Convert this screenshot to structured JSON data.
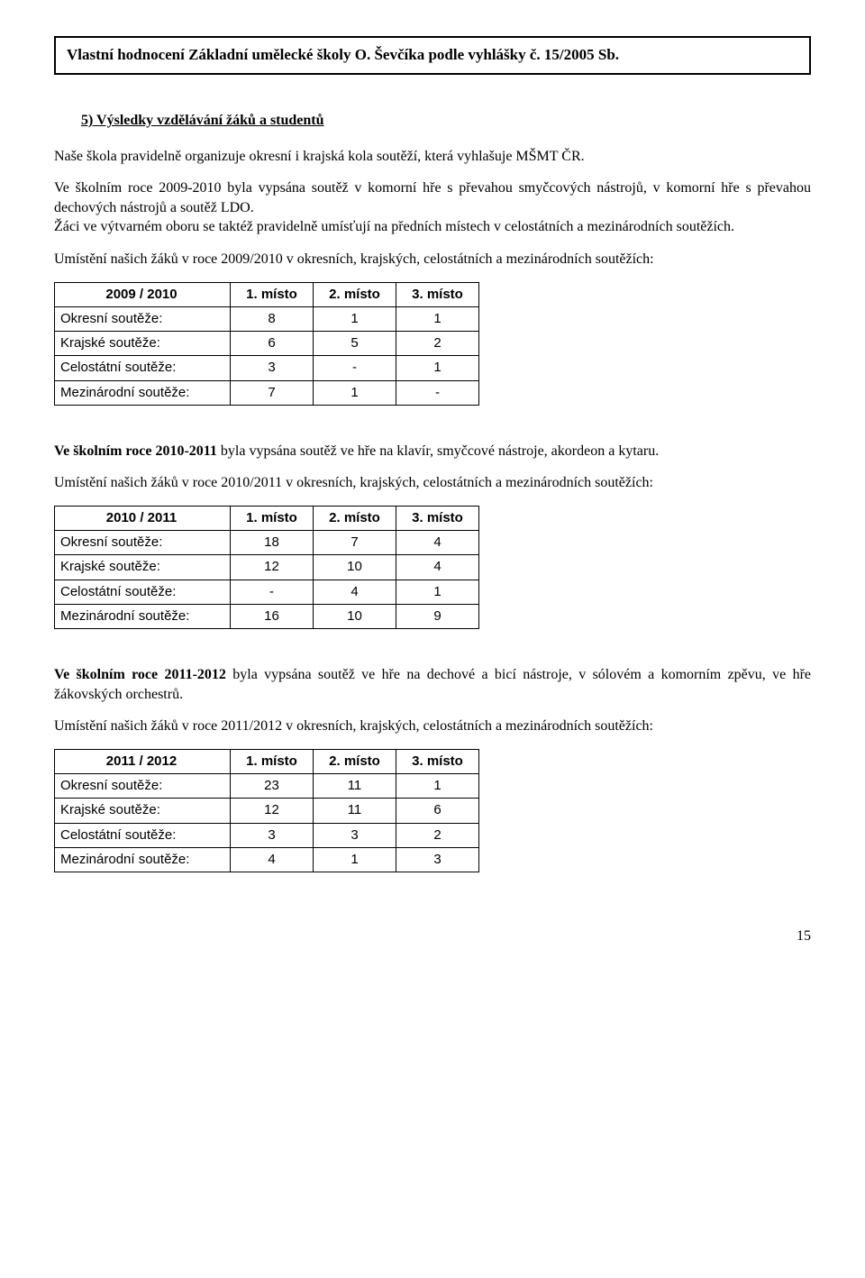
{
  "header_title": "Vlastní hodnocení Základní umělecké školy O. Ševčíka podle vyhlášky č. 15/2005 Sb.",
  "section_heading": "5)  Výsledky vzdělávání žáků a studentů",
  "para_intro1": "Naše škola pravidelně organizuje okresní i krajská kola soutěží, která vyhlašuje MŠMT ČR.",
  "para_intro2": "Ve školním roce 2009-2010 byla vypsána soutěž v komorní hře s převahou smyčcových nástrojů, v komorní hře s převahou dechových nástrojů a soutěž LDO.",
  "para_intro3": "Žáci ve výtvarném oboru se taktéž pravidelně umísťují na předních místech v celostátních a mezinárodních soutěžích.",
  "para_t1": "Umístění našich žáků v roce 2009/2010 v okresních, krajských, celostátních a mezinárodních soutěžích:",
  "para_block2": "Ve školním roce 2010-2011 byla vypsána soutěž ve hře na klavír, smyčcové nástroje, akordeon a kytaru.",
  "para_block2_bold": "Ve školním roce 2010-2011",
  "para_block2_rest": " byla vypsána soutěž ve hře na klavír, smyčcové nástroje, akordeon a kytaru.",
  "para_t2": "Umístění našich žáků v roce 2010/2011 v okresních, krajských, celostátních a mezinárodních soutěžích:",
  "para_block3_bold": "Ve školním roce 2011-2012",
  "para_block3_rest": " byla vypsána soutěž ve hře na dechové a bicí nástroje, v sólovém a komorním zpěvu, ve hře žákovských orchestrů.",
  "para_t3": "Umístění našich žáků v roce 2011/2012 v okresních, krajských, celostátních a mezinárodních soutěžích:",
  "col_headers": [
    "1. místo",
    "2. místo",
    "3. místo"
  ],
  "row_labels": [
    "Okresní soutěže:",
    "Krajské soutěže:",
    "Celostátní soutěže:",
    "Mezinárodní soutěže:"
  ],
  "tables": [
    {
      "year_label": "2009 / 2010",
      "rows": [
        [
          "8",
          "1",
          "1"
        ],
        [
          "6",
          "5",
          "2"
        ],
        [
          "3",
          "-",
          "1"
        ],
        [
          "7",
          "1",
          "-"
        ]
      ]
    },
    {
      "year_label": "2010 / 2011",
      "rows": [
        [
          "18",
          "7",
          "4"
        ],
        [
          "12",
          "10",
          "4"
        ],
        [
          "-",
          "4",
          "1"
        ],
        [
          "16",
          "10",
          "9"
        ]
      ]
    },
    {
      "year_label": "2011 / 2012",
      "rows": [
        [
          "23",
          "11",
          "1"
        ],
        [
          "12",
          "11",
          "6"
        ],
        [
          "3",
          "3",
          "2"
        ],
        [
          "4",
          "1",
          "3"
        ]
      ]
    }
  ],
  "page_number": "15"
}
